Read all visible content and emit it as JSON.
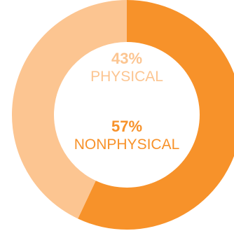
{
  "chart_data": {
    "type": "pie",
    "variant": "donut",
    "slices": [
      {
        "label": "PHYSICAL",
        "percent_text": "43%",
        "value": 43,
        "color": "#fcc591"
      },
      {
        "label": "NONPHYSICAL",
        "percent_text": "57%",
        "value": 57,
        "color": "#f7922a"
      }
    ],
    "start": "top",
    "direction": "clockwise",
    "order": [
      "NONPHYSICAL",
      "PHYSICAL"
    ],
    "title": "",
    "legend": "none"
  }
}
